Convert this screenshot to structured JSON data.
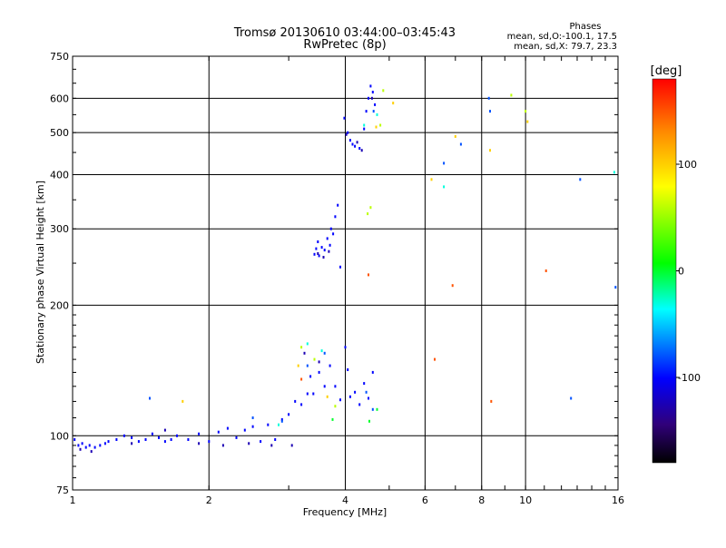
{
  "chart_data": {
    "type": "scatter",
    "title": "Tromsø 20130610 03:44:00–03:45:43",
    "subtitle": "RwPretec (8p)",
    "xlabel": "Frequency [MHz]",
    "ylabel": "Stationary phase Virtual Height [km]",
    "x_scale": "log",
    "y_scale": "log",
    "xlim": [
      1,
      16
    ],
    "ylim": [
      75,
      750
    ],
    "grid": true,
    "x_ticks": [
      {
        "value": 1,
        "label": "1"
      },
      {
        "value": 2,
        "label": "2"
      },
      {
        "value": 4,
        "label": "4"
      },
      {
        "value": 6,
        "label": "6"
      },
      {
        "value": 8,
        "label": "8"
      },
      {
        "value": 10,
        "label": "10"
      },
      {
        "value": 16,
        "label": "16"
      }
    ],
    "y_ticks": [
      {
        "value": 75,
        "label": "75"
      },
      {
        "value": 100,
        "label": "100"
      },
      {
        "value": 200,
        "label": "200"
      },
      {
        "value": 300,
        "label": "300"
      },
      {
        "value": 400,
        "label": "400"
      },
      {
        "value": 500,
        "label": "500"
      },
      {
        "value": 600,
        "label": "600"
      },
      {
        "value": 750,
        "label": "750"
      }
    ],
    "stats": {
      "heading": "Phases",
      "line1": "mean, sd,O:-100.1, 17.5",
      "line2": "mean, sd,X:  79.7, 23.3"
    },
    "colorbar": {
      "label": "[deg]",
      "range": [
        -180,
        180
      ],
      "ticks": [
        {
          "value": 100,
          "label": "100"
        },
        {
          "value": 0,
          "label": "0"
        },
        {
          "value": -100,
          "label": "-100"
        }
      ]
    },
    "point_groups": [
      {
        "phase": -100,
        "points": [
          [
            1.01,
            98
          ],
          [
            1.03,
            95
          ],
          [
            1.05,
            96
          ],
          [
            1.07,
            94
          ],
          [
            1.09,
            95
          ],
          [
            1.12,
            94
          ],
          [
            1.15,
            95
          ],
          [
            1.18,
            96
          ],
          [
            1.2,
            97
          ],
          [
            1.25,
            98
          ],
          [
            1.3,
            100
          ],
          [
            1.35,
            99
          ],
          [
            1.4,
            97
          ],
          [
            1.45,
            98
          ],
          [
            1.5,
            101
          ],
          [
            1.55,
            99
          ],
          [
            1.6,
            97
          ],
          [
            1.65,
            98
          ],
          [
            1.7,
            100
          ],
          [
            1.8,
            98
          ],
          [
            1.9,
            101
          ],
          [
            2.0,
            97
          ],
          [
            2.1,
            102
          ],
          [
            2.2,
            104
          ],
          [
            2.3,
            99
          ],
          [
            2.4,
            103
          ],
          [
            2.5,
            105
          ],
          [
            2.6,
            97
          ],
          [
            2.7,
            106
          ],
          [
            2.8,
            98
          ],
          [
            2.9,
            109
          ],
          [
            3.0,
            112
          ],
          [
            3.1,
            120
          ],
          [
            3.2,
            118
          ],
          [
            3.3,
            125
          ],
          [
            3.35,
            137
          ],
          [
            3.4,
            125
          ],
          [
            3.5,
            140
          ],
          [
            3.6,
            130
          ],
          [
            3.7,
            145
          ],
          [
            3.8,
            130
          ],
          [
            3.9,
            121
          ],
          [
            4.0,
            160
          ],
          [
            4.05,
            142
          ],
          [
            4.1,
            123
          ],
          [
            4.2,
            126
          ],
          [
            4.3,
            118
          ],
          [
            4.4,
            132
          ],
          [
            4.5,
            122
          ],
          [
            4.6,
            140
          ],
          [
            3.42,
            262
          ],
          [
            3.45,
            270
          ],
          [
            3.48,
            280
          ],
          [
            3.5,
            260
          ],
          [
            3.55,
            272
          ],
          [
            3.6,
            268
          ],
          [
            3.65,
            285
          ],
          [
            3.7,
            275
          ],
          [
            3.72,
            300
          ],
          [
            3.76,
            292
          ],
          [
            3.8,
            320
          ],
          [
            3.85,
            340
          ],
          [
            3.9,
            245
          ],
          [
            3.98,
            540
          ],
          [
            4.05,
            500
          ],
          [
            4.1,
            480
          ],
          [
            4.15,
            470
          ],
          [
            4.2,
            465
          ],
          [
            4.3,
            460
          ],
          [
            4.4,
            510
          ],
          [
            4.45,
            560
          ],
          [
            4.5,
            600
          ],
          [
            4.55,
            640
          ],
          [
            4.6,
            620
          ],
          [
            4.65,
            580
          ]
        ]
      },
      {
        "phase": -125,
        "points": [
          [
            1.04,
            93
          ],
          [
            1.1,
            92
          ],
          [
            1.35,
            96
          ],
          [
            1.6,
            103
          ],
          [
            1.9,
            96
          ],
          [
            2.15,
            95
          ],
          [
            2.45,
            96
          ],
          [
            2.75,
            95
          ],
          [
            3.05,
            95
          ],
          [
            3.25,
            155
          ],
          [
            3.5,
            148
          ],
          [
            3.48,
            263
          ],
          [
            3.58,
            258
          ],
          [
            3.68,
            266
          ],
          [
            4.02,
            495
          ],
          [
            4.25,
            475
          ],
          [
            4.35,
            455
          ],
          [
            4.58,
            600
          ]
        ]
      },
      {
        "phase": -80,
        "points": [
          [
            1.48,
            122
          ],
          [
            2.5,
            110
          ],
          [
            2.9,
            108
          ],
          [
            3.3,
            145
          ],
          [
            3.6,
            155
          ],
          [
            4.45,
            126
          ],
          [
            4.6,
            115
          ],
          [
            4.62,
            560
          ],
          [
            6.6,
            425
          ],
          [
            7.2,
            470
          ],
          [
            8.3,
            600
          ],
          [
            8.35,
            560
          ],
          [
            12.6,
            122
          ],
          [
            13.2,
            390
          ],
          [
            15.8,
            220
          ]
        ]
      },
      {
        "phase": -30,
        "points": [
          [
            2.85,
            106
          ],
          [
            3.3,
            163
          ],
          [
            3.55,
            157
          ],
          [
            4.4,
            520
          ],
          [
            4.7,
            550
          ],
          [
            6.6,
            375
          ],
          [
            15.7,
            405
          ]
        ]
      },
      {
        "phase": 0,
        "points": [
          [
            3.75,
            109
          ],
          [
            4.52,
            108
          ],
          [
            4.7,
            115
          ]
        ]
      },
      {
        "phase": 60,
        "points": [
          [
            3.2,
            160
          ],
          [
            3.42,
            150
          ],
          [
            3.8,
            117
          ],
          [
            4.48,
            325
          ],
          [
            4.55,
            336
          ],
          [
            4.78,
            520
          ],
          [
            4.85,
            625
          ],
          [
            9.3,
            610
          ],
          [
            10.0,
            560
          ]
        ]
      },
      {
        "phase": 100,
        "points": [
          [
            1.75,
            120
          ],
          [
            3.15,
            145
          ],
          [
            3.65,
            123
          ],
          [
            4.68,
            515
          ],
          [
            5.1,
            585
          ],
          [
            6.2,
            390
          ],
          [
            7.0,
            490
          ],
          [
            8.35,
            455
          ],
          [
            10.1,
            530
          ]
        ]
      },
      {
        "phase": 150,
        "points": [
          [
            3.2,
            135
          ],
          [
            4.5,
            235
          ],
          [
            6.3,
            150
          ],
          [
            6.9,
            222
          ],
          [
            8.4,
            120
          ],
          [
            11.1,
            240
          ]
        ]
      }
    ]
  }
}
